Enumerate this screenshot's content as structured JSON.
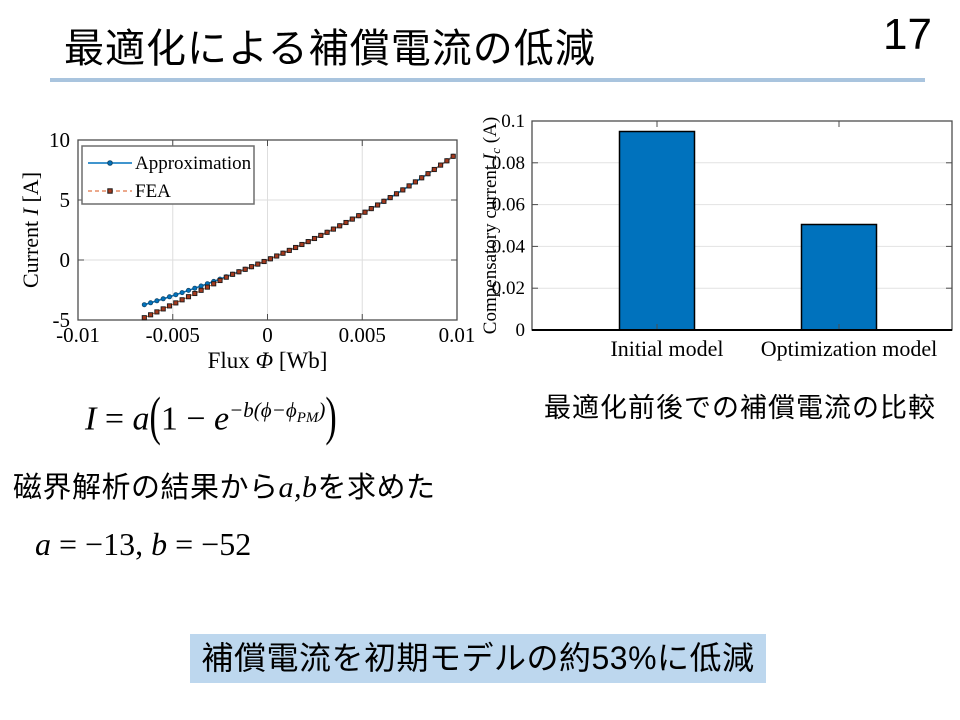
{
  "header": {
    "title": "最適化による補償電流の低減",
    "page_number": "17",
    "underline_color": "#A9C4DE"
  },
  "captions": {
    "bar_chart": "最適化前後での補償電流の比較"
  },
  "formula": {
    "lhs": "I",
    "equals": " = ",
    "coeff": "a",
    "lparen": "(",
    "body": "1 − ",
    "base": "e",
    "exp_head": "−b(ϕ−ϕ",
    "exp_sub": "PM",
    "exp_tail": ")",
    "rparen": ")"
  },
  "note": {
    "prefix": "磁界解析の結果から",
    "vars": "a,b",
    "suffix": "を求めた"
  },
  "params": {
    "a_name": "a",
    "a_value": " = −13, ",
    "b_name": "b",
    "b_value": " = −52"
  },
  "conclusion": {
    "text": "補償電流を初期モデルの約53%に低減",
    "highlight_color": "#BDD7EE"
  },
  "chart_data": [
    {
      "id": "line-chart",
      "type": "line",
      "xlabel_parts": {
        "prefix": "Flux  ",
        "symbol": "Φ",
        "suffix": " [Wb]"
      },
      "ylabel_parts": {
        "prefix": "Current  ",
        "symbol": "I",
        "suffix": " [A]"
      },
      "xlim": [
        -0.01,
        0.01
      ],
      "ylim": [
        -5,
        10
      ],
      "xticks": [
        -0.01,
        -0.005,
        0,
        0.005,
        0.01
      ],
      "xtick_labels": [
        "-0.01",
        "-0.005",
        "0",
        "0.005",
        "0.01"
      ],
      "yticks": [
        -5,
        0,
        5,
        10
      ],
      "ytick_labels": [
        "-5",
        "0",
        "5",
        "10"
      ],
      "grid": true,
      "legend_position": "top-left",
      "x_start": -0.0065,
      "x_end": 0.0098,
      "n_points": 50,
      "model": {
        "a": -13,
        "b": -52,
        "phi_pm": 0
      },
      "series": [
        {
          "name": "Approximation",
          "color": "#0072BD",
          "line_style": "solid",
          "marker": "circle",
          "marker_fill": "#0072BD",
          "marker_edge": "#14486B"
        },
        {
          "name": "FEA",
          "color": "#D95319",
          "line_style": "dashed",
          "marker": "square",
          "marker_fill": "#A63A1E",
          "marker_edge": "#1A1A1A",
          "deviation": {
            "start_x": -0.002,
            "slope": 240
          }
        }
      ]
    },
    {
      "id": "bar-chart",
      "type": "bar",
      "ylabel_parts": {
        "prefix": "Compensatory current  ",
        "symbol": "I",
        "subscript": "c",
        "suffix": " (A)"
      },
      "categories": [
        "Initial model",
        "Optimization model"
      ],
      "values": [
        0.095,
        0.0505
      ],
      "ylim": [
        0,
        0.1
      ],
      "yticks": [
        0,
        0.02,
        0.04,
        0.06,
        0.08,
        0.1
      ],
      "ytick_labels": [
        "0",
        "0.02",
        "0.04",
        "0.06",
        "0.08",
        "0.1"
      ],
      "grid": true,
      "bar_color": "#0072BD",
      "bar_edge_color": "#000000"
    }
  ]
}
